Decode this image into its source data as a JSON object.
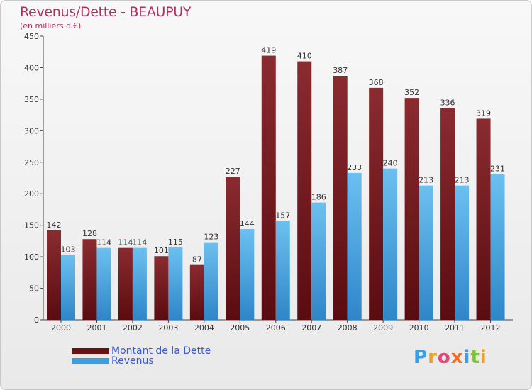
{
  "title": "Revenus/Dette - BEAUPUY",
  "subtitle": "(en milliers d'€)",
  "colors": {
    "debt": "#7a1a1e",
    "debt_dark": "#5a0c10",
    "revenue": "#3a9ee0",
    "revenue_light": "#6cc0f0",
    "title": "#b03060",
    "legend_text": "#3b5bd6"
  },
  "legend": [
    {
      "label": "Montant de la Dette",
      "color": "#6b1114"
    },
    {
      "label": "Revenus",
      "color": "#3a9ee0"
    }
  ],
  "logo": {
    "letters": [
      "P",
      "r",
      "o",
      "x",
      "i",
      "t",
      "i"
    ]
  },
  "chart_data": {
    "type": "bar",
    "title": "Revenus/Dette - BEAUPUY",
    "subtitle": "(en milliers d'€)",
    "xlabel": "",
    "ylabel": "",
    "ylim": [
      0,
      450
    ],
    "yticks": [
      0,
      50,
      100,
      150,
      200,
      250,
      300,
      350,
      400,
      450
    ],
    "grid": false,
    "legend_position": "bottom-left",
    "categories": [
      "2000",
      "2001",
      "2002",
      "2003",
      "2004",
      "2005",
      "2006",
      "2007",
      "2008",
      "2009",
      "2010",
      "2011",
      "2012"
    ],
    "series": [
      {
        "name": "Montant de la Dette",
        "values": [
          142,
          128,
          114,
          101,
          87,
          227,
          419,
          410,
          387,
          368,
          352,
          336,
          319
        ]
      },
      {
        "name": "Revenus",
        "values": [
          103,
          114,
          114,
          115,
          123,
          144,
          157,
          186,
          233,
          240,
          213,
          213,
          231
        ]
      }
    ]
  }
}
